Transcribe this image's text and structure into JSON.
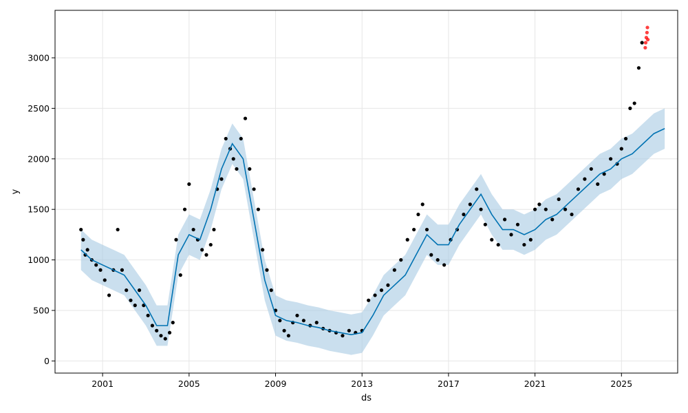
{
  "chart_data": {
    "type": "line",
    "title": "",
    "xlabel": "ds",
    "ylabel": "y",
    "xlim": [
      1998.8,
      2027.6
    ],
    "ylim": [
      -120,
      3470
    ],
    "x_ticks": [
      2001,
      2005,
      2009,
      2013,
      2017,
      2021,
      2025
    ],
    "x_tick_labels": [
      "2001",
      "2005",
      "2009",
      "2013",
      "2017",
      "2021",
      "2025"
    ],
    "y_ticks": [
      0,
      500,
      1000,
      1500,
      2000,
      2500,
      3000
    ],
    "y_tick_labels": [
      "0",
      "500",
      "1000",
      "1500",
      "2000",
      "2500",
      "3000"
    ],
    "grid": true,
    "colors": {
      "observed": "#000000",
      "forecast": "#0072B2",
      "uncertainty": "#A6CAE3",
      "anomaly": "#FF0000"
    },
    "series": [
      {
        "role": "observed",
        "style": "points",
        "x": [
          2000.0,
          2000.1,
          2000.2,
          2000.3,
          2000.5,
          2000.7,
          2000.9,
          2001.1,
          2001.3,
          2001.5,
          2001.7,
          2001.9,
          2002.1,
          2002.3,
          2002.5,
          2002.7,
          2002.9,
          2003.1,
          2003.3,
          2003.5,
          2003.7,
          2003.9,
          2004.1,
          2004.25,
          2004.4,
          2004.6,
          2004.8,
          2005.0,
          2005.2,
          2005.4,
          2005.6,
          2005.8,
          2006.0,
          2006.15,
          2006.3,
          2006.5,
          2006.7,
          2006.9,
          2007.05,
          2007.2,
          2007.4,
          2007.6,
          2007.8,
          2008.0,
          2008.2,
          2008.4,
          2008.6,
          2008.8,
          2009.0,
          2009.2,
          2009.4,
          2009.6,
          2009.8,
          2010.0,
          2010.3,
          2010.6,
          2010.9,
          2011.2,
          2011.5,
          2011.8,
          2012.1,
          2012.4,
          2012.7,
          2013.0,
          2013.3,
          2013.6,
          2013.9,
          2014.2,
          2014.5,
          2014.8,
          2015.1,
          2015.4,
          2015.6,
          2015.8,
          2016.0,
          2016.2,
          2016.5,
          2016.8,
          2017.1,
          2017.4,
          2017.7,
          2018.0,
          2018.3,
          2018.5,
          2018.7,
          2019.0,
          2019.3,
          2019.6,
          2019.9,
          2020.2,
          2020.5,
          2020.8,
          2021.0,
          2021.2,
          2021.5,
          2021.8,
          2022.1,
          2022.4,
          2022.7,
          2023.0,
          2023.3,
          2023.6,
          2023.9,
          2024.2,
          2024.5,
          2024.8,
          2025.0,
          2025.2,
          2025.4,
          2025.6,
          2025.8,
          2025.95
        ],
        "y": [
          1300,
          1200,
          1050,
          1100,
          1000,
          950,
          900,
          800,
          650,
          900,
          1300,
          900,
          700,
          600,
          550,
          700,
          550,
          450,
          350,
          300,
          250,
          220,
          280,
          380,
          1200,
          850,
          1500,
          1750,
          1300,
          1200,
          1100,
          1050,
          1150,
          1300,
          1700,
          1800,
          2200,
          2100,
          2000,
          1900,
          2200,
          2400,
          1900,
          1700,
          1500,
          1100,
          900,
          700,
          500,
          400,
          300,
          250,
          380,
          450,
          400,
          350,
          380,
          320,
          300,
          280,
          250,
          300,
          280,
          300,
          600,
          650,
          700,
          750,
          900,
          1000,
          1200,
          1300,
          1450,
          1550,
          1300,
          1050,
          1000,
          950,
          1200,
          1300,
          1450,
          1550,
          1700,
          1500,
          1350,
          1200,
          1150,
          1400,
          1250,
          1350,
          1150,
          1200,
          1500,
          1550,
          1500,
          1400,
          1600,
          1500,
          1450,
          1700,
          1800,
          1900,
          1750,
          1850,
          2000,
          1950,
          2100,
          2200,
          2500,
          2550,
          2900,
          3150
        ]
      },
      {
        "role": "forecast",
        "style": "line",
        "x": [
          2000.0,
          2000.5,
          2001.0,
          2001.5,
          2002.0,
          2002.5,
          2003.0,
          2003.5,
          2004.0,
          2004.5,
          2005.0,
          2005.5,
          2006.0,
          2006.5,
          2007.0,
          2007.5,
          2008.0,
          2008.5,
          2009.0,
          2009.5,
          2010.0,
          2010.5,
          2011.0,
          2011.5,
          2012.0,
          2012.5,
          2013.0,
          2013.5,
          2014.0,
          2014.5,
          2015.0,
          2015.5,
          2016.0,
          2016.5,
          2017.0,
          2017.5,
          2018.0,
          2018.5,
          2019.0,
          2019.5,
          2020.0,
          2020.5,
          2021.0,
          2021.5,
          2022.0,
          2022.5,
          2023.0,
          2023.5,
          2024.0,
          2024.5,
          2025.0,
          2025.5,
          2026.0,
          2026.5,
          2027.0
        ],
        "y": [
          1100,
          1000,
          950,
          900,
          850,
          700,
          550,
          350,
          350,
          1050,
          1250,
          1200,
          1500,
          1900,
          2150,
          2000,
          1400,
          800,
          450,
          400,
          380,
          350,
          330,
          300,
          280,
          260,
          280,
          450,
          650,
          750,
          850,
          1050,
          1250,
          1150,
          1150,
          1350,
          1500,
          1650,
          1450,
          1300,
          1300,
          1250,
          1300,
          1400,
          1450,
          1550,
          1650,
          1750,
          1850,
          1900,
          2000,
          2050,
          2150,
          2250,
          2300
        ]
      },
      {
        "role": "uncertainty",
        "style": "band",
        "x": [
          2000.0,
          2000.5,
          2001.0,
          2001.5,
          2002.0,
          2002.5,
          2003.0,
          2003.5,
          2004.0,
          2004.5,
          2005.0,
          2005.5,
          2006.0,
          2006.5,
          2007.0,
          2007.5,
          2008.0,
          2008.5,
          2009.0,
          2009.5,
          2010.0,
          2010.5,
          2011.0,
          2011.5,
          2012.0,
          2012.5,
          2013.0,
          2013.5,
          2014.0,
          2014.5,
          2015.0,
          2015.5,
          2016.0,
          2016.5,
          2017.0,
          2017.5,
          2018.0,
          2018.5,
          2019.0,
          2019.5,
          2020.0,
          2020.5,
          2021.0,
          2021.5,
          2022.0,
          2022.5,
          2023.0,
          2023.5,
          2024.0,
          2024.5,
          2025.0,
          2025.5,
          2026.0,
          2026.5,
          2027.0
        ],
        "lower": [
          900,
          800,
          750,
          700,
          650,
          500,
          350,
          150,
          150,
          850,
          1050,
          1000,
          1300,
          1700,
          1950,
          1800,
          1200,
          600,
          250,
          200,
          180,
          150,
          130,
          100,
          80,
          60,
          80,
          250,
          450,
          550,
          650,
          850,
          1050,
          950,
          950,
          1150,
          1300,
          1450,
          1250,
          1100,
          1100,
          1050,
          1100,
          1200,
          1250,
          1350,
          1450,
          1550,
          1650,
          1700,
          1800,
          1850,
          1950,
          2050,
          2100
        ],
        "upper": [
          1300,
          1200,
          1150,
          1100,
          1050,
          900,
          750,
          550,
          550,
          1250,
          1450,
          1400,
          1700,
          2100,
          2350,
          2200,
          1600,
          1000,
          650,
          600,
          580,
          550,
          530,
          500,
          480,
          460,
          480,
          650,
          850,
          950,
          1050,
          1250,
          1450,
          1350,
          1350,
          1550,
          1700,
          1850,
          1650,
          1500,
          1500,
          1450,
          1500,
          1600,
          1650,
          1750,
          1850,
          1950,
          2050,
          2100,
          2200,
          2250,
          2350,
          2450,
          2500
        ]
      },
      {
        "role": "anomaly",
        "style": "points",
        "x": [
          2026.1,
          2026.12,
          2026.15,
          2026.18,
          2026.2,
          2026.22
        ],
        "y": [
          3100,
          3150,
          3200,
          3250,
          3300,
          3180
        ]
      }
    ]
  }
}
